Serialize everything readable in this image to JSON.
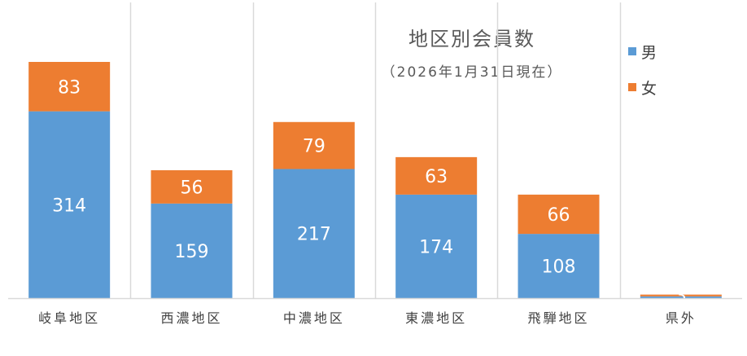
{
  "chart_data": {
    "type": "bar",
    "stacked": true,
    "title": "地区別会員数",
    "subtitle": "（2026年1月31日現在）",
    "categories": [
      "岐阜地区",
      "西濃地区",
      "中濃地区",
      "東濃地区",
      "飛騨地区",
      "県外"
    ],
    "series": [
      {
        "name": "男",
        "color": "#5B9BD5",
        "values": [
          314,
          159,
          217,
          174,
          108,
          3
        ],
        "labels": [
          "314",
          "159",
          "217",
          "174",
          "108",
          ""
        ]
      },
      {
        "name": "女",
        "color": "#ED7D31",
        "values": [
          83,
          56,
          79,
          63,
          66,
          3
        ],
        "labels": [
          "83",
          "56",
          "79",
          "63",
          "66",
          "3"
        ]
      }
    ],
    "ylim": [
      0,
      480
    ],
    "grid": "vertical-separators",
    "legend": "right"
  }
}
